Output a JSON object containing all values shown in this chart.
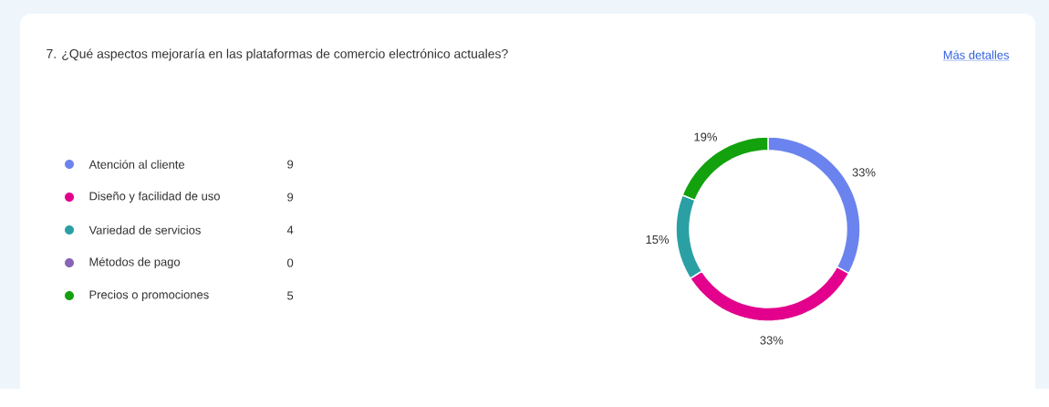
{
  "chart_data": {
    "type": "donut",
    "title": "7. ¿Qué aspectos mejoraría en las plataformas de comercio electrónico actuales?",
    "categories": [
      "Atención al cliente",
      "Diseño y facilidad de uso",
      "Variedad de servicios",
      "Métodos de pago",
      "Precios o promociones"
    ],
    "values": [
      33,
      33,
      15,
      0,
      19
    ],
    "colors": [
      "#6b83ee",
      "#e3008c",
      "#2aa0a4",
      "#8764b8",
      "#13a10e"
    ],
    "value_labels": [
      "33%",
      "33%",
      "15%",
      null,
      "19%"
    ],
    "legend": "left",
    "annotations": [
      "Más detalles",
      "9",
      "9",
      "4",
      "0",
      "5"
    ]
  }
}
